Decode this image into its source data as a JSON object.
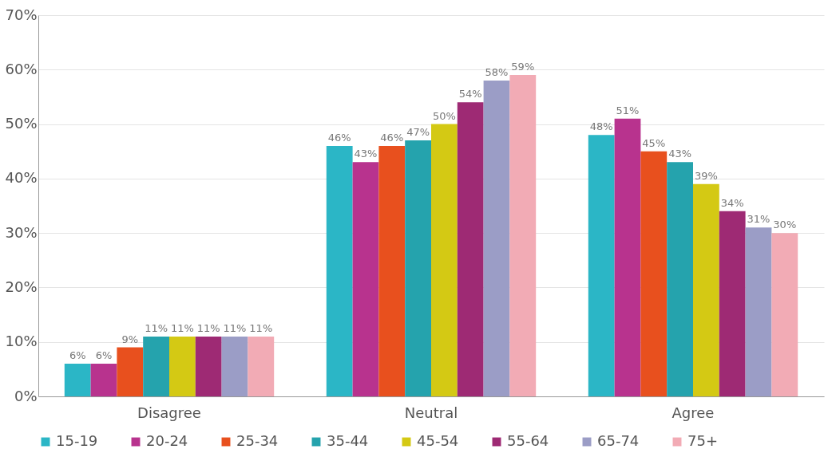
{
  "chart_data": {
    "type": "bar",
    "categories": [
      "Disagree",
      "Neutral",
      "Agree"
    ],
    "series": [
      {
        "name": "15-19",
        "color": "#2bb6c6",
        "values": [
          6,
          46,
          48
        ],
        "value_labels": [
          "6%",
          "46%",
          "48%"
        ]
      },
      {
        "name": "20-24",
        "color": "#b8338e",
        "values": [
          6,
          43,
          51
        ],
        "value_labels": [
          "6%",
          "43%",
          "51%"
        ]
      },
      {
        "name": "25-34",
        "color": "#e8501e",
        "values": [
          9,
          46,
          45
        ],
        "value_labels": [
          "9%",
          "46%",
          "45%"
        ]
      },
      {
        "name": "35-44",
        "color": "#25a3ad",
        "values": [
          11,
          47,
          43
        ],
        "value_labels": [
          "11%",
          "47%",
          "43%"
        ]
      },
      {
        "name": "45-54",
        "color": "#d4c914",
        "values": [
          11,
          50,
          39
        ],
        "value_labels": [
          "11%",
          "50%",
          "39%"
        ]
      },
      {
        "name": "55-64",
        "color": "#9e2a74",
        "values": [
          11,
          54,
          34
        ],
        "value_labels": [
          "11%",
          "54%",
          "34%"
        ]
      },
      {
        "name": "65-74",
        "color": "#9b9dc6",
        "values": [
          11,
          58,
          31
        ],
        "value_labels": [
          "11%",
          "58%",
          "31%"
        ]
      },
      {
        "name": "75+",
        "color": "#f2abb5",
        "values": [
          11,
          59,
          30
        ],
        "value_labels": [
          "11%",
          "59%",
          "30%"
        ]
      }
    ],
    "ylim": [
      0,
      70
    ],
    "yticks": [
      {
        "value": 0,
        "label": "0%"
      },
      {
        "value": 10,
        "label": "10%"
      },
      {
        "value": 20,
        "label": "20%"
      },
      {
        "value": 30,
        "label": "30%"
      },
      {
        "value": 40,
        "label": "40%"
      },
      {
        "value": 50,
        "label": "50%"
      },
      {
        "value": 60,
        "label": "60%"
      },
      {
        "value": 70,
        "label": "70%"
      }
    ],
    "grid": "y",
    "legend": "bottom"
  }
}
